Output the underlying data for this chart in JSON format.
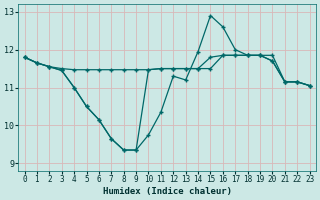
{
  "xlabel": "Humidex (Indice chaleur)",
  "xlim": [
    -0.5,
    23.5
  ],
  "ylim": [
    8.8,
    13.2
  ],
  "yticks": [
    9,
    10,
    11,
    12,
    13
  ],
  "xticks": [
    0,
    1,
    2,
    3,
    4,
    5,
    6,
    7,
    8,
    9,
    10,
    11,
    12,
    13,
    14,
    15,
    16,
    17,
    18,
    19,
    20,
    21,
    22,
    23
  ],
  "bg_color": "#cce8e5",
  "grid_color_v": "#d8b8b8",
  "grid_color_h": "#d8b8b8",
  "line_color": "#006868",
  "line1": [
    11.8,
    11.65,
    11.55,
    11.5,
    11.47,
    11.47,
    11.47,
    11.47,
    11.47,
    11.47,
    11.47,
    11.5,
    11.5,
    11.5,
    11.5,
    11.8,
    11.85,
    11.85,
    11.85,
    11.85,
    11.85,
    11.15,
    11.15,
    11.05
  ],
  "line2": [
    11.8,
    11.65,
    11.55,
    11.45,
    11.0,
    10.5,
    10.15,
    9.65,
    9.35,
    9.35,
    9.75,
    10.35,
    11.3,
    11.2,
    11.95,
    12.9,
    12.6,
    12.0,
    11.85,
    11.85,
    11.7,
    11.15,
    11.15,
    11.05
  ],
  "line3": [
    11.8,
    11.65,
    11.55,
    11.45,
    11.0,
    10.5,
    10.15,
    9.65,
    9.35,
    9.35,
    11.47,
    11.5,
    11.5,
    11.5,
    11.5,
    11.5,
    11.85,
    11.85,
    11.85,
    11.85,
    11.7,
    11.15,
    11.15,
    11.05
  ]
}
